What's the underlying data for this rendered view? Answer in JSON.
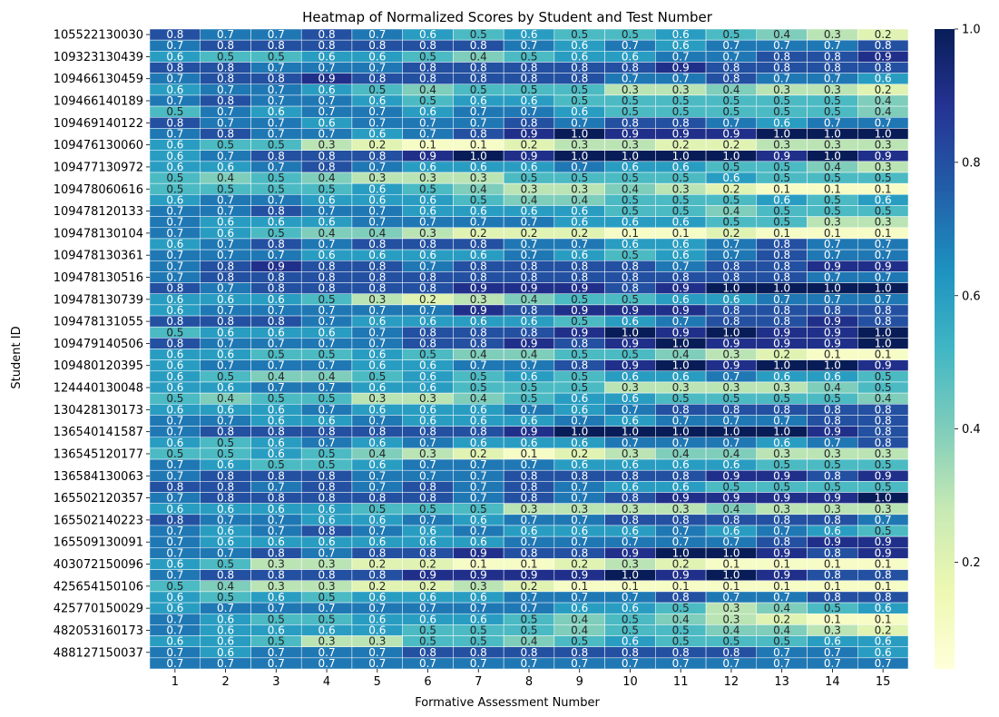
{
  "chart_data": {
    "type": "heatmap",
    "title": "Heatmap of Normalized Scores by Student and Test Number",
    "xlabel": "Formative Assessment Number",
    "ylabel": "Student ID",
    "x": [
      "1",
      "2",
      "3",
      "4",
      "5",
      "6",
      "7",
      "8",
      "9",
      "10",
      "11",
      "12",
      "13",
      "14",
      "15"
    ],
    "y_tick_labels": [
      "105522130030",
      "109323130439",
      "109466130459",
      "109466140189",
      "109469140122",
      "109476130060",
      "109477130972",
      "109478060616",
      "109478120133",
      "109478130104",
      "109478130361",
      "109478130516",
      "109478130739",
      "109478131055",
      "109479140506",
      "109480120395",
      "124440130048",
      "130428130173",
      "136540141587",
      "136545120177",
      "136584130063",
      "165502120357",
      "165502140223",
      "165509130091",
      "403072150096",
      "425654150106",
      "425770150029",
      "482053160173",
      "488127150037"
    ],
    "row_count": 58,
    "colormap": "YlGnBu",
    "vmin": 0.04,
    "vmax": 1.0,
    "colorbar_ticks": [
      "0.2",
      "0.4",
      "0.6",
      "0.8",
      "1.0"
    ],
    "colorbar_tick_values": [
      0.2,
      0.4,
      0.6,
      0.8,
      1.0
    ],
    "annotations": true,
    "values": [
      [
        0.8,
        0.7,
        0.7,
        0.8,
        0.7,
        0.6,
        0.5,
        0.6,
        0.5,
        0.5,
        0.6,
        0.5,
        0.4,
        0.3,
        0.2
      ],
      [
        0.7,
        0.8,
        0.8,
        0.8,
        0.8,
        0.8,
        0.8,
        0.7,
        0.6,
        0.7,
        0.6,
        0.7,
        0.7,
        0.7,
        0.8
      ],
      [
        0.6,
        0.5,
        0.5,
        0.6,
        0.6,
        0.5,
        0.4,
        0.5,
        0.6,
        0.6,
        0.7,
        0.7,
        0.8,
        0.8,
        0.9
      ],
      [
        0.8,
        0.8,
        0.7,
        0.7,
        0.7,
        0.8,
        0.8,
        0.8,
        0.8,
        0.8,
        0.9,
        0.8,
        0.8,
        0.8,
        0.8
      ],
      [
        0.7,
        0.8,
        0.8,
        0.9,
        0.8,
        0.8,
        0.8,
        0.8,
        0.8,
        0.7,
        0.7,
        0.8,
        0.7,
        0.7,
        0.6
      ],
      [
        0.6,
        0.7,
        0.7,
        0.6,
        0.5,
        0.4,
        0.5,
        0.5,
        0.5,
        0.3,
        0.3,
        0.4,
        0.3,
        0.3,
        0.2
      ],
      [
        0.7,
        0.8,
        0.7,
        0.7,
        0.6,
        0.5,
        0.6,
        0.6,
        0.5,
        0.5,
        0.5,
        0.5,
        0.5,
        0.5,
        0.4
      ],
      [
        0.5,
        0.7,
        0.6,
        0.7,
        0.7,
        0.6,
        0.7,
        0.7,
        0.6,
        0.5,
        0.5,
        0.5,
        0.5,
        0.5,
        0.4
      ],
      [
        0.8,
        0.7,
        0.7,
        0.6,
        0.7,
        0.7,
        0.7,
        0.8,
        0.7,
        0.8,
        0.8,
        0.7,
        0.6,
        0.7,
        0.7
      ],
      [
        0.7,
        0.8,
        0.7,
        0.7,
        0.6,
        0.7,
        0.8,
        0.9,
        1.0,
        0.9,
        0.9,
        0.9,
        1.0,
        1.0,
        1.0
      ],
      [
        0.6,
        0.5,
        0.5,
        0.3,
        0.2,
        0.1,
        0.1,
        0.2,
        0.3,
        0.3,
        0.2,
        0.2,
        0.3,
        0.3,
        0.3
      ],
      [
        0.6,
        0.7,
        0.8,
        0.8,
        0.8,
        0.9,
        1.0,
        0.9,
        1.0,
        1.0,
        1.0,
        1.0,
        0.9,
        1.0,
        0.9
      ],
      [
        0.6,
        0.6,
        0.7,
        0.8,
        0.7,
        0.6,
        0.6,
        0.6,
        0.7,
        0.6,
        0.6,
        0.5,
        0.5,
        0.4,
        0.3
      ],
      [
        0.5,
        0.4,
        0.5,
        0.4,
        0.3,
        0.3,
        0.3,
        0.5,
        0.5,
        0.5,
        0.5,
        0.6,
        0.5,
        0.5,
        0.5
      ],
      [
        0.5,
        0.5,
        0.5,
        0.5,
        0.6,
        0.5,
        0.4,
        0.3,
        0.3,
        0.4,
        0.3,
        0.2,
        0.1,
        0.1,
        0.1
      ],
      [
        0.6,
        0.7,
        0.7,
        0.6,
        0.6,
        0.6,
        0.5,
        0.4,
        0.4,
        0.5,
        0.5,
        0.5,
        0.6,
        0.5,
        0.6
      ],
      [
        0.7,
        0.7,
        0.8,
        0.7,
        0.7,
        0.6,
        0.6,
        0.6,
        0.6,
        0.5,
        0.5,
        0.4,
        0.5,
        0.5,
        0.5
      ],
      [
        0.7,
        0.6,
        0.6,
        0.6,
        0.7,
        0.7,
        0.7,
        0.7,
        0.6,
        0.6,
        0.6,
        0.5,
        0.5,
        0.3,
        0.3
      ],
      [
        0.7,
        0.6,
        0.5,
        0.4,
        0.4,
        0.3,
        0.2,
        0.2,
        0.2,
        0.1,
        0.1,
        0.2,
        0.1,
        0.1,
        0.1
      ],
      [
        0.6,
        0.7,
        0.8,
        0.7,
        0.8,
        0.8,
        0.8,
        0.7,
        0.7,
        0.6,
        0.6,
        0.7,
        0.8,
        0.7,
        0.7
      ],
      [
        0.7,
        0.7,
        0.7,
        0.6,
        0.6,
        0.6,
        0.6,
        0.7,
        0.6,
        0.5,
        0.6,
        0.7,
        0.8,
        0.7,
        0.7
      ],
      [
        0.7,
        0.8,
        0.9,
        0.8,
        0.8,
        0.7,
        0.8,
        0.8,
        0.8,
        0.8,
        0.7,
        0.8,
        0.8,
        0.9,
        0.9
      ],
      [
        0.7,
        0.8,
        0.8,
        0.8,
        0.8,
        0.8,
        0.8,
        0.8,
        0.8,
        0.8,
        0.8,
        0.8,
        0.8,
        0.7,
        0.7
      ],
      [
        0.8,
        0.7,
        0.8,
        0.8,
        0.8,
        0.8,
        0.9,
        0.9,
        0.9,
        0.8,
        0.9,
        1.0,
        1.0,
        1.0,
        1.0
      ],
      [
        0.6,
        0.6,
        0.6,
        0.5,
        0.3,
        0.2,
        0.3,
        0.4,
        0.5,
        0.5,
        0.6,
        0.6,
        0.7,
        0.7,
        0.7
      ],
      [
        0.6,
        0.7,
        0.7,
        0.7,
        0.7,
        0.7,
        0.9,
        0.8,
        0.9,
        0.9,
        0.9,
        0.8,
        0.8,
        0.8,
        0.8
      ],
      [
        0.8,
        0.8,
        0.8,
        0.7,
        0.6,
        0.6,
        0.6,
        0.6,
        0.5,
        0.6,
        0.7,
        0.8,
        0.8,
        0.9,
        0.8
      ],
      [
        0.5,
        0.6,
        0.6,
        0.6,
        0.7,
        0.8,
        0.8,
        0.8,
        0.9,
        1.0,
        0.9,
        1.0,
        0.9,
        0.9,
        1.0
      ],
      [
        0.8,
        0.7,
        0.7,
        0.7,
        0.7,
        0.8,
        0.8,
        0.9,
        0.8,
        0.9,
        1.0,
        0.9,
        0.9,
        0.9,
        1.0
      ],
      [
        0.6,
        0.6,
        0.5,
        0.5,
        0.6,
        0.5,
        0.4,
        0.4,
        0.5,
        0.5,
        0.4,
        0.3,
        0.2,
        0.1,
        0.1
      ],
      [
        0.6,
        0.7,
        0.7,
        0.7,
        0.6,
        0.6,
        0.7,
        0.7,
        0.8,
        0.9,
        1.0,
        0.9,
        1.0,
        1.0,
        0.9
      ],
      [
        0.6,
        0.5,
        0.4,
        0.4,
        0.5,
        0.6,
        0.5,
        0.6,
        0.5,
        0.6,
        0.6,
        0.7,
        0.6,
        0.6,
        0.5
      ],
      [
        0.6,
        0.6,
        0.7,
        0.7,
        0.6,
        0.6,
        0.5,
        0.5,
        0.5,
        0.3,
        0.3,
        0.3,
        0.3,
        0.4,
        0.5
      ],
      [
        0.5,
        0.4,
        0.5,
        0.5,
        0.3,
        0.3,
        0.4,
        0.5,
        0.6,
        0.6,
        0.5,
        0.5,
        0.5,
        0.5,
        0.4
      ],
      [
        0.6,
        0.6,
        0.6,
        0.7,
        0.6,
        0.6,
        0.6,
        0.7,
        0.6,
        0.7,
        0.8,
        0.8,
        0.8,
        0.8,
        0.8
      ],
      [
        0.7,
        0.7,
        0.6,
        0.6,
        0.7,
        0.6,
        0.6,
        0.6,
        0.7,
        0.6,
        0.7,
        0.7,
        0.7,
        0.8,
        0.8
      ],
      [
        0.7,
        0.8,
        0.8,
        0.8,
        0.8,
        0.8,
        0.8,
        0.9,
        1.0,
        1.0,
        1.0,
        1.0,
        1.0,
        0.9,
        0.8
      ],
      [
        0.6,
        0.5,
        0.6,
        0.7,
        0.6,
        0.7,
        0.6,
        0.6,
        0.6,
        0.7,
        0.7,
        0.7,
        0.6,
        0.7,
        0.8
      ],
      [
        0.5,
        0.5,
        0.6,
        0.5,
        0.4,
        0.3,
        0.2,
        0.1,
        0.2,
        0.3,
        0.4,
        0.4,
        0.3,
        0.3,
        0.3
      ],
      [
        0.7,
        0.6,
        0.5,
        0.5,
        0.6,
        0.7,
        0.7,
        0.7,
        0.6,
        0.6,
        0.6,
        0.6,
        0.5,
        0.5,
        0.5
      ],
      [
        0.7,
        0.8,
        0.8,
        0.8,
        0.7,
        0.7,
        0.7,
        0.8,
        0.8,
        0.8,
        0.8,
        0.9,
        0.9,
        0.8,
        0.9
      ],
      [
        0.8,
        0.8,
        0.7,
        0.8,
        0.7,
        0.8,
        0.7,
        0.8,
        0.7,
        0.6,
        0.6,
        0.5,
        0.5,
        0.5,
        0.5
      ],
      [
        0.7,
        0.8,
        0.8,
        0.8,
        0.8,
        0.8,
        0.7,
        0.8,
        0.7,
        0.8,
        0.9,
        0.9,
        0.9,
        0.9,
        1.0
      ],
      [
        0.6,
        0.6,
        0.6,
        0.6,
        0.5,
        0.5,
        0.5,
        0.3,
        0.3,
        0.3,
        0.3,
        0.4,
        0.3,
        0.3,
        0.3
      ],
      [
        0.8,
        0.7,
        0.7,
        0.6,
        0.6,
        0.7,
        0.6,
        0.7,
        0.7,
        0.8,
        0.8,
        0.8,
        0.8,
        0.8,
        0.7
      ],
      [
        0.7,
        0.6,
        0.7,
        0.8,
        0.7,
        0.6,
        0.7,
        0.6,
        0.6,
        0.6,
        0.7,
        0.6,
        0.7,
        0.6,
        0.5
      ],
      [
        0.7,
        0.6,
        0.6,
        0.6,
        0.6,
        0.6,
        0.6,
        0.7,
        0.7,
        0.7,
        0.7,
        0.7,
        0.8,
        0.9,
        0.9
      ],
      [
        0.7,
        0.7,
        0.8,
        0.7,
        0.8,
        0.8,
        0.9,
        0.8,
        0.8,
        0.9,
        1.0,
        1.0,
        0.9,
        0.8,
        0.9
      ],
      [
        0.6,
        0.5,
        0.3,
        0.3,
        0.2,
        0.2,
        0.1,
        0.1,
        0.2,
        0.3,
        0.2,
        0.1,
        0.1,
        0.1,
        0.1
      ],
      [
        0.7,
        0.8,
        0.8,
        0.8,
        0.8,
        0.9,
        0.9,
        0.9,
        0.9,
        1.0,
        0.9,
        1.0,
        0.9,
        0.8,
        0.8
      ],
      [
        0.5,
        0.4,
        0.3,
        0.3,
        0.2,
        0.2,
        0.3,
        0.2,
        0.1,
        0.1,
        0.1,
        0.1,
        0.1,
        0.1,
        0.1
      ],
      [
        0.6,
        0.5,
        0.6,
        0.5,
        0.6,
        0.6,
        0.6,
        0.7,
        0.7,
        0.7,
        0.8,
        0.7,
        0.7,
        0.8,
        0.8
      ],
      [
        0.6,
        0.7,
        0.7,
        0.7,
        0.7,
        0.7,
        0.7,
        0.7,
        0.6,
        0.6,
        0.5,
        0.3,
        0.4,
        0.5,
        0.6
      ],
      [
        0.7,
        0.6,
        0.5,
        0.5,
        0.6,
        0.6,
        0.6,
        0.5,
        0.4,
        0.5,
        0.4,
        0.3,
        0.2,
        0.1,
        0.1
      ],
      [
        0.7,
        0.6,
        0.6,
        0.6,
        0.6,
        0.5,
        0.5,
        0.5,
        0.4,
        0.5,
        0.5,
        0.4,
        0.4,
        0.3,
        0.2
      ],
      [
        0.6,
        0.6,
        0.5,
        0.3,
        0.3,
        0.5,
        0.5,
        0.4,
        0.5,
        0.6,
        0.5,
        0.5,
        0.5,
        0.6,
        0.6
      ],
      [
        0.7,
        0.6,
        0.7,
        0.7,
        0.7,
        0.8,
        0.8,
        0.8,
        0.8,
        0.8,
        0.8,
        0.8,
        0.7,
        0.7,
        0.6
      ],
      [
        0.7,
        0.7,
        0.7,
        0.7,
        0.7,
        0.7,
        0.7,
        0.7,
        0.7,
        0.7,
        0.7,
        0.7,
        0.7,
        0.7,
        0.7
      ]
    ]
  }
}
